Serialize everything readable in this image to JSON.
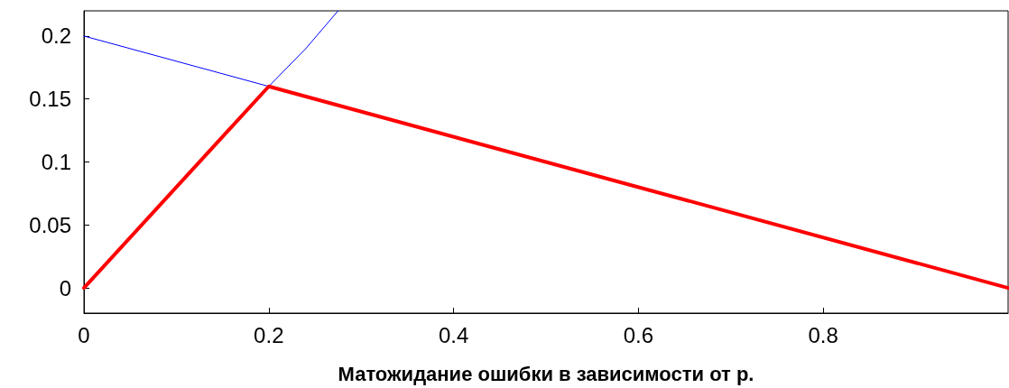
{
  "chart_data": {
    "type": "line",
    "xlabel": "Матожидание ошибки в зависимости от p.",
    "xlim": [
      0,
      1
    ],
    "xticks": [
      0,
      0.2,
      0.4,
      0.6,
      0.8
    ],
    "ylim": [
      -0.02,
      0.22
    ],
    "yticks": [
      0,
      0.05,
      0.1,
      0.15,
      0.2
    ],
    "marker": "none",
    "line_style": "solid",
    "series": [
      {
        "color": "#0000ff",
        "x": [
          0,
          0.2
        ],
        "values": [
          0.2,
          0.16
        ]
      },
      {
        "color": "#0000ff",
        "x": [
          0.2,
          0.24,
          0.275
        ],
        "values": [
          0.16,
          0.19,
          0.22
        ]
      },
      {
        "color": "#ff0000",
        "x": [
          0,
          0.2,
          1
        ],
        "values": [
          0,
          0.16,
          0
        ]
      }
    ]
  }
}
